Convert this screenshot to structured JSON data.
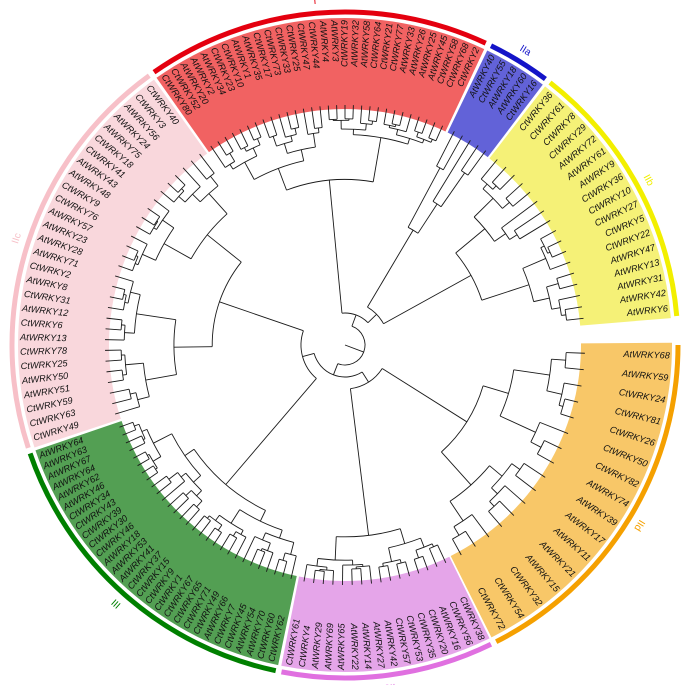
{
  "groups": [
    {
      "id": "I",
      "label": "I",
      "color": "#e4000f",
      "fill": "#f05a5a",
      "leaves": [
        "CtWRKY80",
        "CtWRKY52",
        "AtWRKY20",
        "AtWRKY2",
        "AtWRKY34",
        "CtWRKY23",
        "CtWRKY10",
        "AtWRKY1",
        "AtWRKY35",
        "CtWRKY17",
        "CtWRKY73",
        "CtWRKY33",
        "CtWRKY25",
        "CtWRKY47",
        "CtWRKY44",
        "AtWRKY4",
        "AtWRKY3",
        "CtWRKY19",
        "AtWRKY32",
        "AtWRKY58",
        "CtWRKY64",
        "CtWRKY21",
        "CtWRKY77",
        "AtWRKY33",
        "AtWRKY26",
        "AtWRKY25",
        "AtWRKY45",
        "CtWRKY58",
        "CtWRKY68",
        "CtWRKY2"
      ]
    },
    {
      "id": "IIa",
      "label": "IIa",
      "color": "#1414c8",
      "fill": "#5a5ad6",
      "leaves": [
        "AtWRKY40",
        "CtWRKY55",
        "AtWRKY18",
        "AtWRKY60",
        "CtWRKY16"
      ]
    },
    {
      "id": "IIb",
      "label": "IIb",
      "color": "#f2ef00",
      "fill": "#f4f070",
      "leaves": [
        "CtWRKY36",
        "CtWRKY61",
        "CtWRKY8",
        "CtWRKY29",
        "AtWRKY72",
        "AtWRKY61",
        "AtWRKY9",
        "CtWRKY36",
        "CtWRKY10",
        "CtWRKY27",
        "CtWRKY5",
        "CtWRKY22",
        "AtWRKY47",
        "AtWRKY13",
        "AtWRKY31",
        "AtWRKY42",
        "AtWRKY6"
      ]
    },
    {
      "id": "IId",
      "label": "IId",
      "color": "#f5a000",
      "fill": "#f8c460",
      "leaves": [
        "AtWRKY68",
        "AtWRKY59",
        "CtWRKY24",
        "CtWRKY81",
        "CtWRKY26",
        "CtWRKY50",
        "CtWRKY82",
        "AtWRKY74",
        "AtWRKY39",
        "AtWRKY17",
        "AtWRKY11",
        "AtWRKY21",
        "AtWRKY15",
        "CtWRKY32",
        "CtWRKY54",
        "CtWRKY72"
      ]
    },
    {
      "id": "IIe",
      "label": "IIe",
      "color": "#e070e0",
      "fill": "#e4a0e8",
      "leaves": [
        "CtWRKY38",
        "CtWRKY56",
        "AtWRKY16",
        "CtWRKY20",
        "CtWRKY35",
        "CtWRKY53",
        "CtWRKY57",
        "AtWRKY42",
        "AtWRKY27",
        "AtWRKY14",
        "AtWRKY22",
        "AtWRKY65",
        "AtWRKY69",
        "AtWRKY29",
        "CtWRKY4",
        "CtWRKY61"
      ]
    },
    {
      "id": "III",
      "label": "III",
      "color": "#008000",
      "fill": "#4a9a4a",
      "leaves": [
        "CtWRKY62",
        "CtWRKY60",
        "AtWRKY70",
        "AtWRKY54",
        "CtWRKY45",
        "CtWRKY7",
        "AtWRKY66",
        "CtWRKY49",
        "CtWRKY71",
        "CtWRKY65",
        "CtWRKY67",
        "CtWRKY1",
        "CtWRKY9",
        "CtWRKY15",
        "CtWRKY37",
        "AtWRKY41",
        "AtWRKY53",
        "AtWRKY18",
        "CtWRKY46",
        "CtWRKY30",
        "CtWRKY39",
        "CtWRKY43",
        "CtWRKY34",
        "AtWRKY46",
        "AtWRKY62",
        "AtWRKY64",
        "AtWRKY67",
        "AtWRKY63",
        "AtWRKY64"
      ]
    },
    {
      "id": "IIc",
      "label": "IIc",
      "color": "#f7c0c8",
      "fill": "#f8d0d6",
      "leaves": [
        "CtWRKY49",
        "CtWRKY63",
        "CtWRKY59",
        "AtWRKY51",
        "AtWRKY50",
        "CtWRKY25",
        "CtWRKY78",
        "AtWRKY13",
        "CtWRKY6",
        "AtWRKY12",
        "CtWRKY31",
        "AtWRKY8",
        "CtWRKY2",
        "AtWRKY71",
        "AtWRKY28",
        "AtWRKY23",
        "AtWRKY57",
        "CtWRKY76",
        "CtWRKY9",
        "AtWRKY48",
        "AtWRKY43",
        "CtWRKY41",
        "CtWRKY18",
        "AtWRKY75",
        "AtWRKY24",
        "AtWRKY56",
        "CtWRKY3",
        "CtWRKY40"
      ]
    }
  ]
}
